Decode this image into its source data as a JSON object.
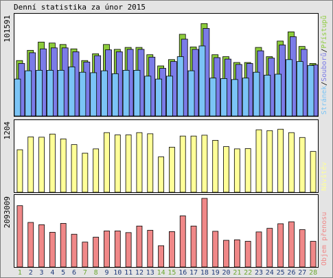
{
  "title": "Denní statistika za únor 2015",
  "colors": {
    "hits": "#8dcc3c",
    "files": "#7b7be8",
    "pages": "#7bc4f6",
    "visits": "#ffff98",
    "transfer": "#f08888",
    "weekday_label": "#1f3a7a",
    "weekend_label": "#6aa72e",
    "frame": "#000000",
    "panel_border": "#7d7d7d",
    "background": "#e4e4e4"
  },
  "chart_data": {
    "type": "bar",
    "days": [
      "1",
      "2",
      "3",
      "4",
      "5",
      "6",
      "7",
      "8",
      "9",
      "10",
      "11",
      "12",
      "13",
      "14",
      "15",
      "16",
      "17",
      "18",
      "19",
      "20",
      "21",
      "22",
      "23",
      "24",
      "25",
      "26",
      "27",
      "28"
    ],
    "weekend_days": [
      "1",
      "7",
      "8",
      "14",
      "15",
      "21",
      "22",
      "28"
    ],
    "panels": [
      {
        "id": "requests",
        "scale_label": "101591",
        "ylim": [
          0,
          101591
        ],
        "legend": [
          "Stránek",
          "Souborů",
          "Přístupů"
        ],
        "series": [
          {
            "name": "Přístupů",
            "color": "hits",
            "values": [
              57000,
              67500,
              76000,
              75000,
              73500,
              69000,
              57000,
              64000,
              73500,
              68500,
              70500,
              70500,
              63000,
              51500,
              58000,
              84000,
              71000,
              95000,
              63000,
              61000,
              55000,
              55000,
              70500,
              61000,
              77000,
              86500,
              71500,
              54000
            ]
          },
          {
            "name": "Souborů",
            "color": "files",
            "values": [
              54000,
              65000,
              69000,
              70000,
              70000,
              66000,
              55500,
              62000,
              68000,
              66000,
              68500,
              68500,
              60500,
              49000,
              56000,
              79000,
              68500,
              90000,
              60000,
              58500,
              53000,
              54000,
              67000,
              59500,
              73000,
              81500,
              68500,
              52500
            ]
          },
          {
            "name": "Stránek",
            "color": "pages",
            "values": [
              38000,
              46500,
              47000,
              47000,
              47000,
              50500,
              45000,
              44500,
              46500,
              43500,
              47000,
              47000,
              41000,
              38000,
              41000,
              61000,
              46500,
              72000,
              39000,
              38500,
              37500,
              39000,
              45000,
              42000,
              43000,
              58000,
              56000,
              52000
            ]
          }
        ]
      },
      {
        "id": "visits",
        "scale_label": "1204",
        "ylim": [
          0,
          1204
        ],
        "legend": [
          "Návštěv"
        ],
        "series": [
          {
            "name": "Návštěv",
            "color": "visits",
            "values": [
              745,
              970,
              965,
              1020,
              935,
              835,
              685,
              760,
              1045,
              1005,
              1005,
              1045,
              1025,
              620,
              790,
              985,
              985,
              1000,
              910,
              800,
              760,
              765,
              1095,
              1080,
              1105,
              1045,
              960,
              715
            ]
          }
        ]
      },
      {
        "id": "transfer",
        "scale_label": "2093009",
        "ylim": [
          0,
          2093009
        ],
        "legend": [
          "Objem přenosu"
        ],
        "series": [
          {
            "name": "Objem přenosu",
            "color": "transfer",
            "values": [
              1870000,
              1360000,
              1290000,
              1060000,
              1330000,
              1000000,
              760000,
              910000,
              1100000,
              1100000,
              1050000,
              1250000,
              1120000,
              650000,
              1080000,
              1560000,
              1250000,
              2093009,
              1090000,
              815000,
              830000,
              785000,
              1070000,
              1180000,
              1320000,
              1380000,
              1140000,
              785000
            ]
          }
        ]
      }
    ]
  }
}
